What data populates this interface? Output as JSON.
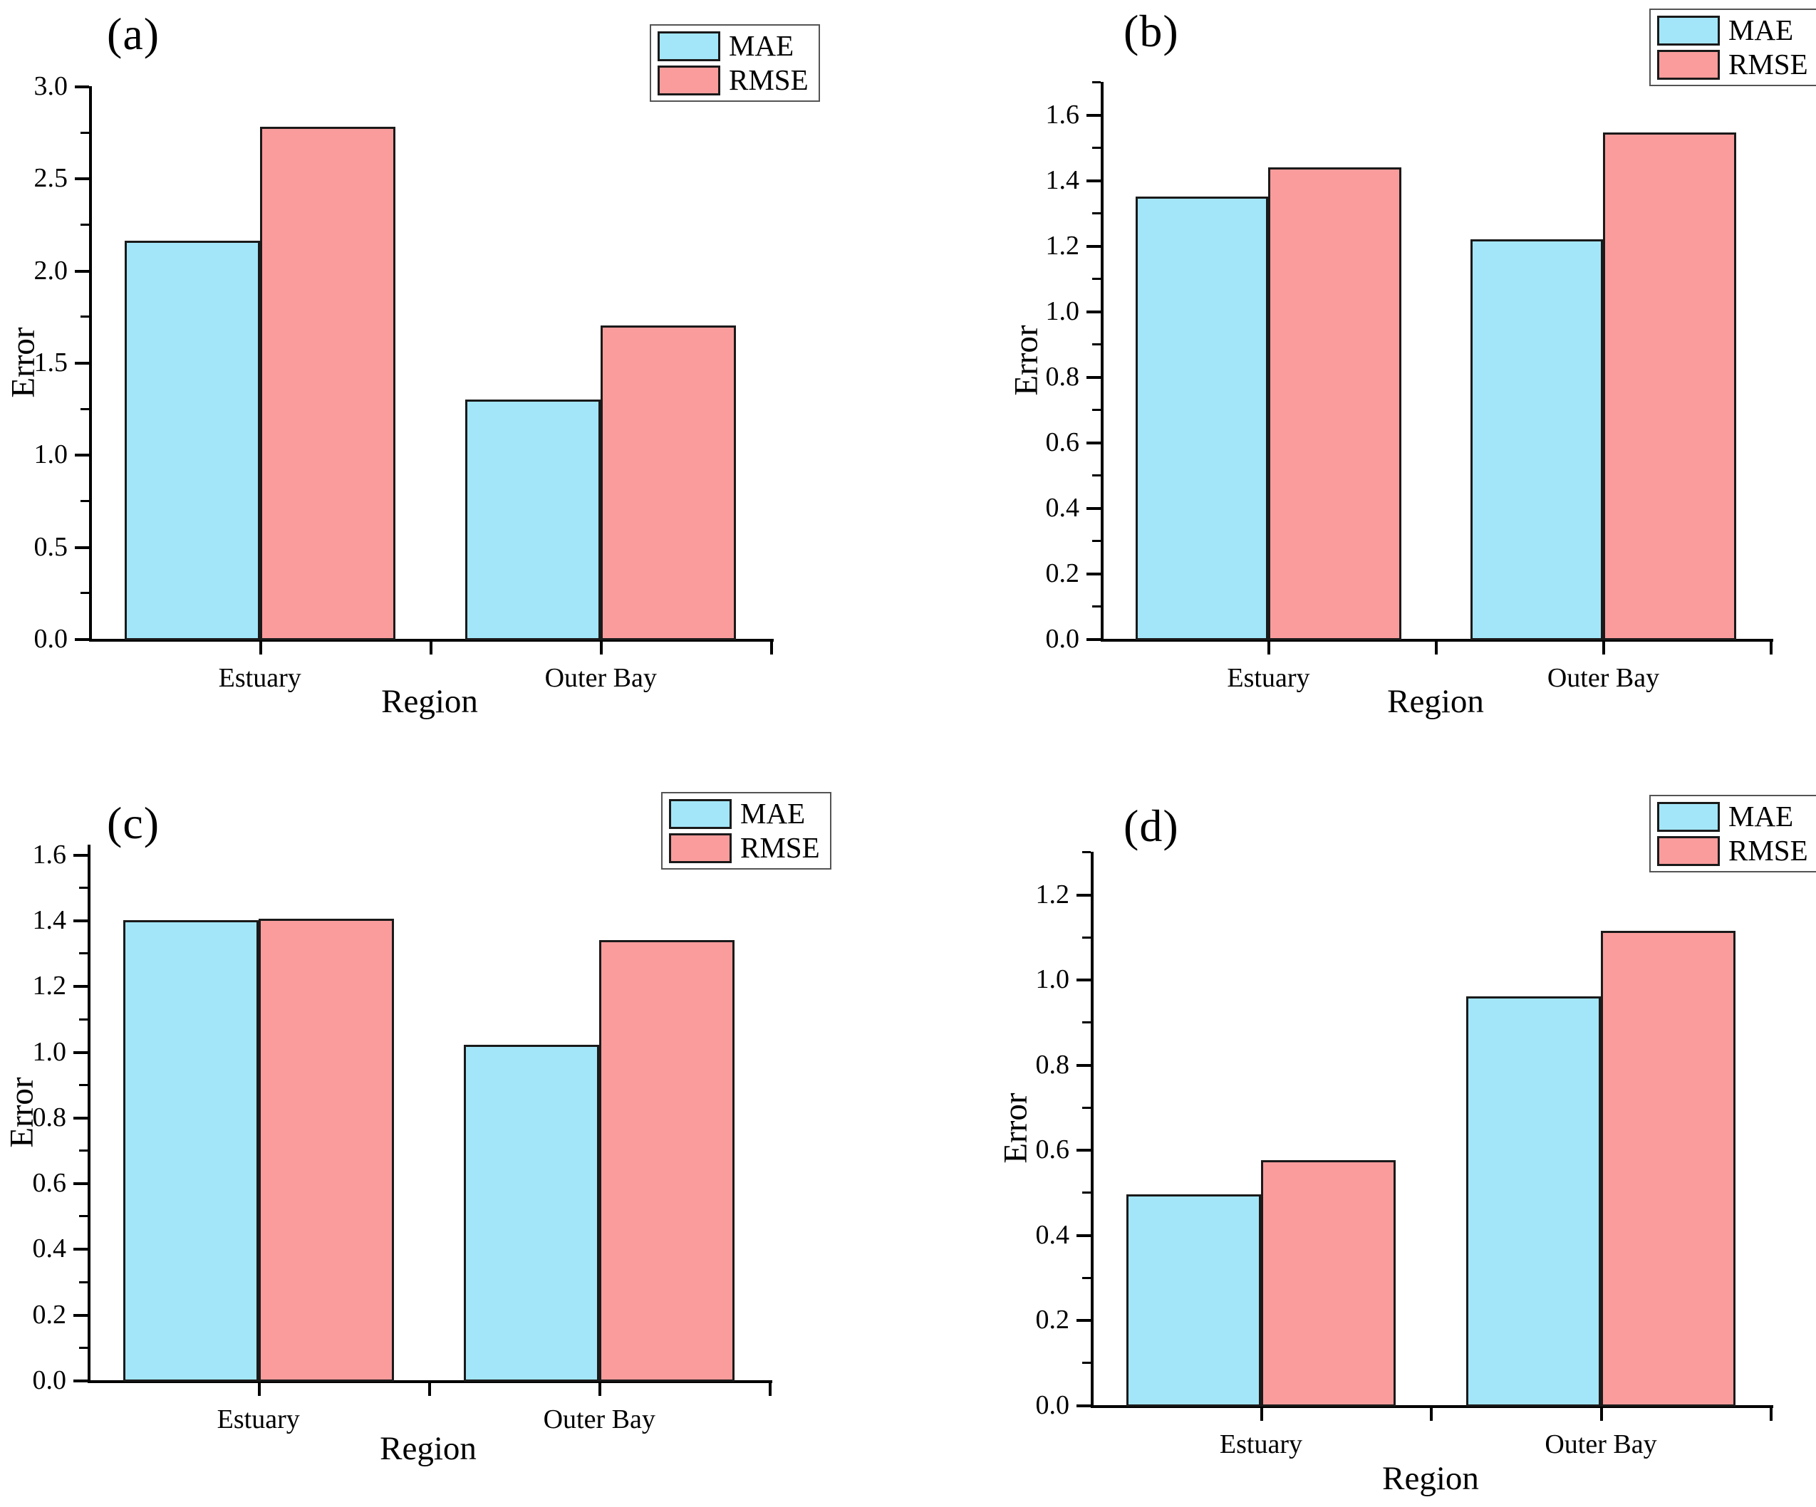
{
  "figure": {
    "background": "#ffffff",
    "colors": {
      "mae_fill": "#a3e6f9",
      "rmse_fill": "#fa9c9c",
      "bar_border": "#1a1a1a",
      "axis_color": "#000000",
      "legend_border": "#545454"
    }
  },
  "chart_data": [
    {
      "panel": "a",
      "tag": "(a)",
      "type": "bar",
      "categories": [
        "Estuary",
        "Outer Bay"
      ],
      "series": [
        {
          "name": "MAE",
          "values": [
            2.16,
            1.3
          ]
        },
        {
          "name": "RMSE",
          "values": [
            2.78,
            1.7
          ]
        }
      ],
      "xlabel": "Region",
      "ylabel": "Error",
      "ylim": [
        0,
        3.0
      ],
      "ytick_step": 0.5,
      "yminor_step": 0.25,
      "ytick_max": 3.0,
      "grid": false,
      "legend_position": "top-right"
    },
    {
      "panel": "b",
      "tag": "(b)",
      "type": "bar",
      "categories": [
        "Estuary",
        "Outer Bay"
      ],
      "series": [
        {
          "name": "MAE",
          "values": [
            1.35,
            1.22
          ]
        },
        {
          "name": "RMSE",
          "values": [
            1.44,
            1.545
          ]
        }
      ],
      "xlabel": "Region",
      "ylabel": "Error",
      "ylim": [
        0,
        1.7
      ],
      "ytick_step": 0.2,
      "yminor_step": 0.1,
      "ytick_max": 1.6,
      "grid": false,
      "legend_position": "top-right"
    },
    {
      "panel": "c",
      "tag": "(c)",
      "type": "bar",
      "categories": [
        "Estuary",
        "Outer Bay"
      ],
      "series": [
        {
          "name": "MAE",
          "values": [
            1.4,
            1.02
          ]
        },
        {
          "name": "RMSE",
          "values": [
            1.405,
            1.34
          ]
        }
      ],
      "xlabel": "Region",
      "ylabel": "Error",
      "ylim": [
        0,
        1.63
      ],
      "ytick_step": 0.2,
      "yminor_step": 0.1,
      "ytick_max": 1.6,
      "grid": false,
      "legend_position": "top-right"
    },
    {
      "panel": "d",
      "tag": "(d)",
      "type": "bar",
      "categories": [
        "Estuary",
        "Outer Bay"
      ],
      "series": [
        {
          "name": "MAE",
          "values": [
            0.495,
            0.96
          ]
        },
        {
          "name": "RMSE",
          "values": [
            0.575,
            1.115
          ]
        }
      ],
      "xlabel": "Region",
      "ylabel": "Error",
      "ylim": [
        0,
        1.3
      ],
      "ytick_step": 0.2,
      "yminor_step": 0.1,
      "ytick_max": 1.2,
      "grid": false,
      "legend_position": "top-right"
    }
  ]
}
